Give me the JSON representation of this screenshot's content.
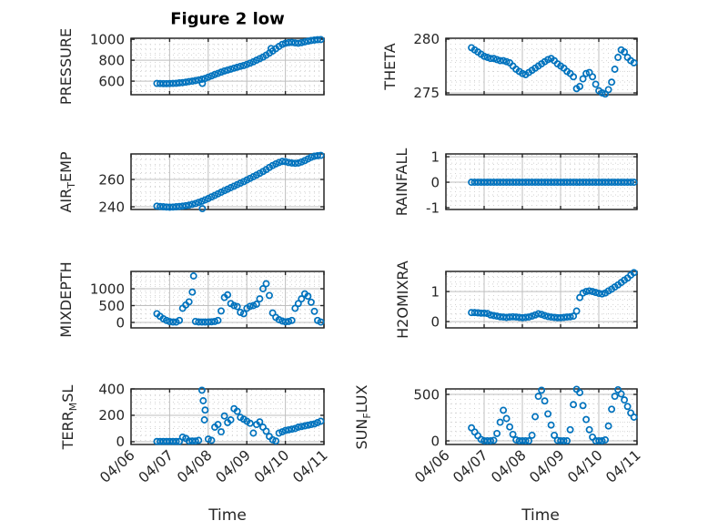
{
  "title": "Figure 2 low",
  "xlabel": "Time",
  "styles": {
    "marker_color": "#0072BD",
    "axes_color": "#262626",
    "major_grid_color": "#bfbfbf",
    "minor_grid_color": "#d2d2d2",
    "text_color": "#262626"
  },
  "chart_data": {
    "type": "scatter",
    "marker": "open-circle",
    "x_axis": {
      "label": "Time",
      "tick_labels": [
        "04/06",
        "04/07",
        "04/08",
        "04/09",
        "04/10",
        "04/11"
      ],
      "range_days": [
        0,
        5
      ],
      "note": "x unit = days after 04/06 00:00"
    },
    "shared_x": {
      "start": 0.67,
      "step": 0.0833,
      "count": 52
    },
    "subplots": [
      {
        "key": "pressure",
        "ylabel": {
          "pre": "PRESSURE",
          "sub": "",
          "post": ""
        },
        "yticks": [
          600,
          800,
          1000
        ],
        "ylim": [
          470,
          1010
        ],
        "values": [
          578,
          577,
          576,
          576,
          577,
          578,
          580,
          583,
          586,
          590,
          595,
          600,
          605,
          611,
          618,
          626,
          638,
          650,
          663,
          674,
          686,
          697,
          706,
          715,
          724,
          733,
          742,
          750,
          760,
          772,
          785,
          800,
          815,
          830,
          848,
          868,
          888,
          910,
          932,
          952,
          963,
          968,
          970,
          966,
          963,
          968,
          975,
          982,
          988,
          993,
          996,
          998
        ],
        "extra_points": [
          [
            1.85,
            578
          ],
          [
            3.63,
            912
          ]
        ]
      },
      {
        "key": "air_temp",
        "ylabel": {
          "pre": "AIR",
          "sub": "T",
          "post": "EMP"
        },
        "yticks": [
          240,
          260
        ],
        "ylim": [
          238,
          278.7
        ],
        "values": [
          240.5,
          240.2,
          240,
          239.8,
          239.7,
          239.8,
          240,
          240.2,
          240.5,
          240.8,
          241.2,
          241.8,
          242.4,
          243.2,
          244.1,
          245,
          246,
          247.2,
          248.3,
          249.5,
          250.6,
          251.8,
          252.9,
          254,
          255.1,
          256.2,
          257.3,
          258.4,
          259.6,
          260.8,
          262,
          263.2,
          264.5,
          265.8,
          267.2,
          268.8,
          270.2,
          271.4,
          272.4,
          273.2,
          273,
          272.4,
          272,
          271.8,
          272,
          272.8,
          273.8,
          275,
          276.2,
          277,
          277.4,
          277.6
        ],
        "extra_points": [
          [
            1.85,
            238.6
          ]
        ]
      },
      {
        "key": "mixdepth",
        "ylabel": {
          "pre": "MIXDEPTH",
          "sub": "",
          "post": ""
        },
        "yticks": [
          0,
          500,
          1000
        ],
        "ylim": [
          -162,
          1514
        ],
        "values": [
          260,
          180,
          110,
          60,
          25,
          10,
          10,
          60,
          420,
          520,
          610,
          900,
          30,
          15,
          10,
          10,
          15,
          20,
          30,
          60,
          340,
          740,
          820,
          560,
          500,
          470,
          300,
          260,
          420,
          480,
          500,
          540,
          700,
          1000,
          1150,
          800,
          280,
          150,
          80,
          40,
          20,
          30,
          60,
          420,
          560,
          700,
          850,
          780,
          600,
          330,
          60,
          10
        ],
        "extra_points": [
          [
            1.62,
            1380
          ]
        ]
      },
      {
        "key": "terr_msl",
        "ylabel": {
          "pre": "TERR",
          "sub": "M",
          "post": "SL"
        },
        "yticks": [
          0,
          200,
          400
        ],
        "ylim": [
          -21,
          400
        ],
        "values": [
          2,
          2,
          2,
          2,
          2,
          2,
          2,
          2,
          35,
          25,
          5,
          5,
          5,
          10,
          390,
          240,
          20,
          10,
          110,
          130,
          75,
          195,
          145,
          165,
          250,
          230,
          185,
          170,
          155,
          140,
          65,
          130,
          150,
          110,
          80,
          40,
          15,
          5,
          65,
          75,
          85,
          90,
          95,
          100,
          110,
          115,
          120,
          125,
          130,
          135,
          145,
          155
        ],
        "extra_points": [
          [
            1.87,
            310
          ],
          [
            1.9,
            165
          ]
        ]
      },
      {
        "key": "theta",
        "ylabel": {
          "pre": "THETA",
          "sub": "",
          "post": ""
        },
        "yticks": [
          275,
          280
        ],
        "ylim": [
          274.83,
          280.08
        ],
        "values": [
          279.2,
          279,
          278.8,
          278.6,
          278.4,
          278.3,
          278.2,
          278.2,
          278.1,
          278,
          278,
          277.9,
          277.8,
          277.5,
          277.2,
          277,
          276.8,
          276.7,
          276.9,
          277.1,
          277.3,
          277.5,
          277.7,
          277.9,
          278.1,
          278.2,
          278,
          277.7,
          277.5,
          277.3,
          277,
          276.8,
          276.5,
          275.4,
          275.6,
          276.3,
          276.8,
          276.9,
          276.5,
          275.8,
          275.2,
          275,
          274.9,
          275.3,
          276,
          277.2,
          278.3,
          279,
          278.8,
          278.3,
          278,
          277.8
        ],
        "extra_points": []
      },
      {
        "key": "rainfall",
        "ylabel": {
          "pre": "RAINFALL",
          "sub": "",
          "post": ""
        },
        "yticks": [
          -1,
          0,
          1
        ],
        "ylim": [
          -1.07,
          1.11
        ],
        "values": [
          0,
          0,
          0,
          0,
          0,
          0,
          0,
          0,
          0,
          0,
          0,
          0,
          0,
          0,
          0,
          0,
          0,
          0,
          0,
          0,
          0,
          0,
          0,
          0,
          0,
          0,
          0,
          0,
          0,
          0,
          0,
          0,
          0,
          0,
          0,
          0,
          0,
          0,
          0,
          0,
          0,
          0,
          0,
          0,
          0,
          0,
          0,
          0,
          0,
          0,
          0,
          0
        ],
        "extra_points": []
      },
      {
        "key": "h2omixra",
        "ylabel": {
          "pre": "H2OMIXRA",
          "sub": "",
          "post": ""
        },
        "yticks": [
          0,
          1
        ],
        "ylim": [
          -0.21,
          1.67
        ],
        "values": [
          0.3,
          0.3,
          0.29,
          0.28,
          0.28,
          0.27,
          0.22,
          0.2,
          0.18,
          0.16,
          0.15,
          0.14,
          0.15,
          0.16,
          0.15,
          0.14,
          0.13,
          0.14,
          0.15,
          0.18,
          0.22,
          0.26,
          0.24,
          0.2,
          0.17,
          0.15,
          0.14,
          0.13,
          0.13,
          0.14,
          0.15,
          0.16,
          0.18,
          0.35,
          0.8,
          0.95,
          1,
          1.02,
          1,
          0.97,
          0.94,
          0.92,
          0.95,
          1.02,
          1.08,
          1.15,
          1.22,
          1.3,
          1.38,
          1.45,
          1.55,
          1.63
        ],
        "extra_points": []
      },
      {
        "key": "sun_flux",
        "ylabel": {
          "pre": "SUN",
          "sub": "F",
          "post": "LUX"
        },
        "yticks": [
          0,
          500
        ],
        "ylim": [
          -39,
          559
        ],
        "values": [
          140,
          95,
          55,
          15,
          0,
          0,
          0,
          5,
          80,
          200,
          330,
          240,
          150,
          70,
          10,
          0,
          0,
          0,
          0,
          60,
          260,
          480,
          545,
          430,
          290,
          170,
          60,
          5,
          0,
          0,
          0,
          120,
          390,
          555,
          520,
          380,
          230,
          120,
          40,
          0,
          0,
          0,
          10,
          160,
          340,
          480,
          550,
          505,
          440,
          370,
          300,
          255
        ],
        "extra_points": []
      }
    ]
  }
}
